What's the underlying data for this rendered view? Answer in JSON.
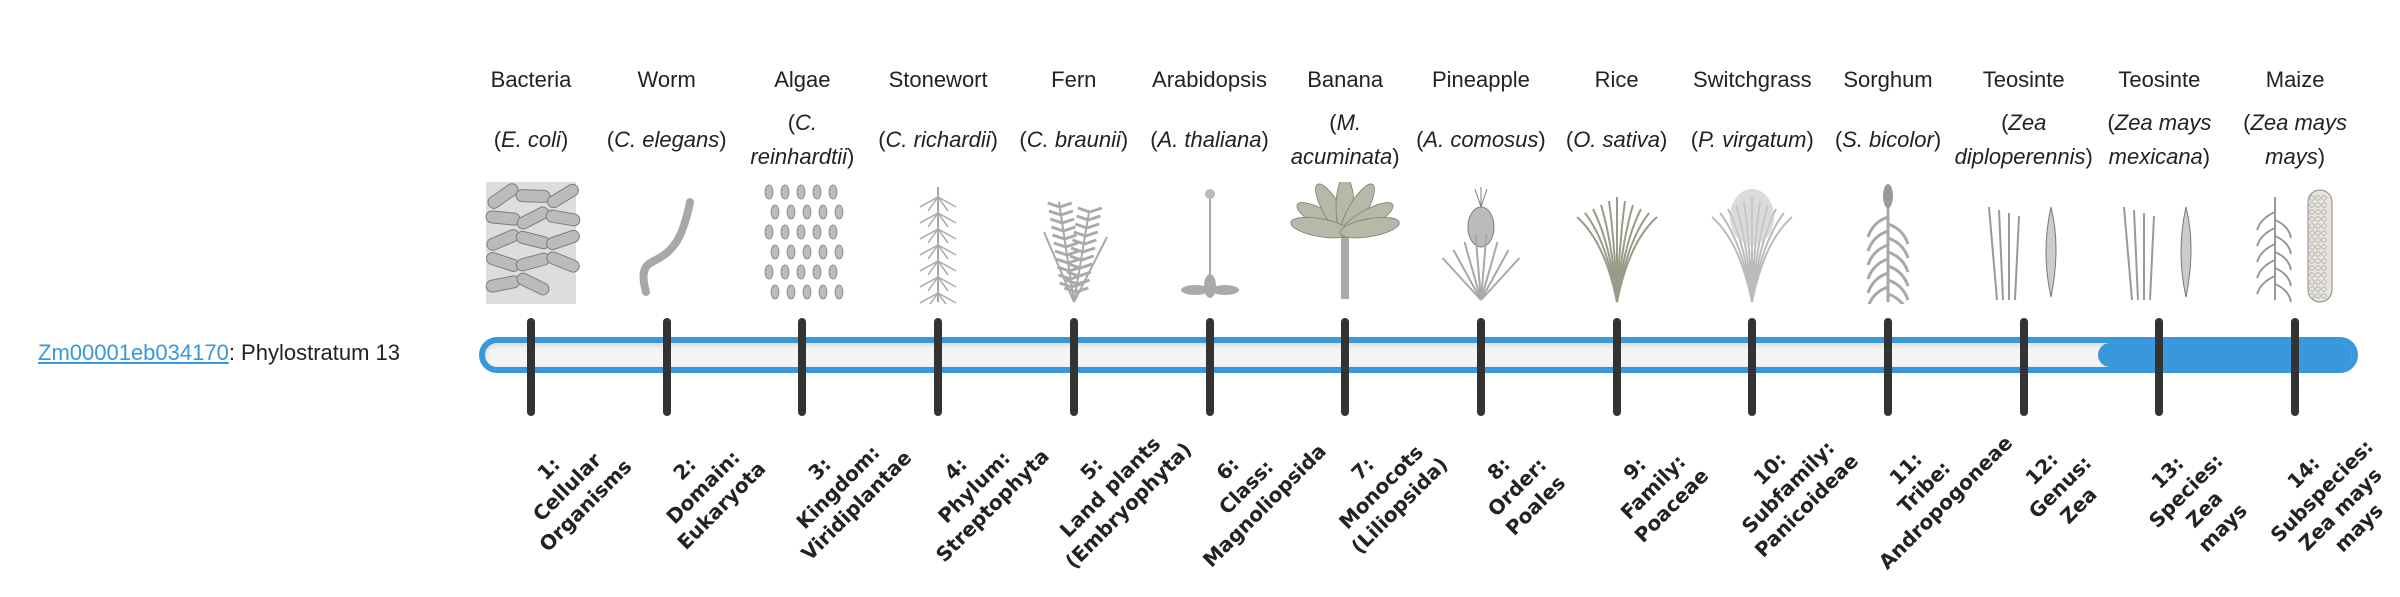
{
  "gene": {
    "id": "Zm00001eb034170",
    "suffix": ": Phylostratum 13"
  },
  "accent_color": "#3898db",
  "phylostratum_value": 13,
  "phylostratum_max": 14,
  "organisms": [
    {
      "name": "Bacteria",
      "sci": "E. coli",
      "icon": "bacteria-image"
    },
    {
      "name": "Worm",
      "sci": "C. elegans",
      "icon": "worm-image"
    },
    {
      "name": "Algae",
      "sci": "C. reinhardtii",
      "icon": "algae-image"
    },
    {
      "name": "Stonewort",
      "sci": "C. richardii",
      "icon": "stonewort-image"
    },
    {
      "name": "Fern",
      "sci": "C. braunii",
      "icon": "fern-image"
    },
    {
      "name": "Arabidopsis",
      "sci": "A. thaliana",
      "icon": "arabidopsis-image"
    },
    {
      "name": "Banana",
      "sci": "M. acuminata",
      "icon": "banana-image"
    },
    {
      "name": "Pineapple",
      "sci": "A. comosus",
      "icon": "pineapple-image"
    },
    {
      "name": "Rice",
      "sci": "O. sativa",
      "icon": "rice-image"
    },
    {
      "name": "Switchgrass",
      "sci": "P. virgatum",
      "icon": "switchgrass-image"
    },
    {
      "name": "Sorghum",
      "sci": "S. bicolor",
      "icon": "sorghum-image"
    },
    {
      "name": "Teosinte",
      "sci": "Zea diploperennis",
      "icon": "teosinte-image"
    },
    {
      "name": "Teosinte",
      "sci": "Zea mays mexicana",
      "icon": "teosinte-image"
    },
    {
      "name": "Maize",
      "sci": "Zea mays mays",
      "icon": "maize-image"
    }
  ],
  "strata": [
    [
      "1:",
      "Cellular",
      "Organisms"
    ],
    [
      "2:",
      "Domain:",
      "Eukaryota"
    ],
    [
      "3:",
      "Kingdom:",
      "Viridiplantae"
    ],
    [
      "4:",
      "Phylum:",
      "Streptophyta"
    ],
    [
      "5:",
      "Land plants",
      "(Embryophyta)"
    ],
    [
      "6:",
      "Class:",
      "Magnoliopsida"
    ],
    [
      "7:",
      "Monocots",
      "(Liliopsida)"
    ],
    [
      "8:",
      "Order:",
      "Poales"
    ],
    [
      "9:",
      "Family:",
      "Poaceae"
    ],
    [
      "10:",
      "Subfamily:",
      "Panicoideae"
    ],
    [
      "11:",
      "Tribe:",
      "Andropogoneae"
    ],
    [
      "12:",
      "Genus:",
      "Zea"
    ],
    [
      "13:",
      "Species:",
      "Zea",
      "mays"
    ],
    [
      "14:",
      "Subspecies:",
      "Zea mays",
      "mays"
    ]
  ]
}
